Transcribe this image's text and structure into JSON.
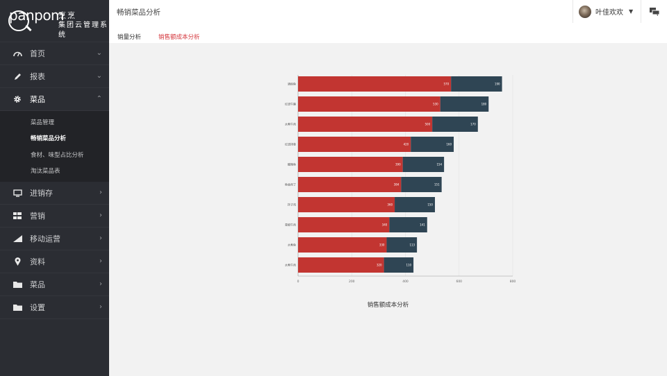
{
  "brand": {
    "name_en": "panpom",
    "name_cn": "烹烹",
    "subtitle": "集团云管理系统"
  },
  "sidebar": {
    "items": [
      {
        "label": "首页",
        "icon": "dashboard-icon",
        "arrow": "⌄"
      },
      {
        "label": "报表",
        "icon": "pencil-icon",
        "arrow": "⌄"
      },
      {
        "label": "菜品",
        "icon": "gear-icon",
        "arrow": "⌃"
      }
    ],
    "submenu": [
      {
        "label": "菜品管理"
      },
      {
        "label": "畅销菜品分析"
      },
      {
        "label": "食材、味型占比分析"
      },
      {
        "label": "淘汰菜品表"
      }
    ],
    "items_after": [
      {
        "label": "进销存",
        "icon": "monitor-icon",
        "arrow": "›"
      },
      {
        "label": "营销",
        "icon": "grid-icon",
        "arrow": "›"
      },
      {
        "label": "移动运营",
        "icon": "bar-chart-icon",
        "arrow": "›"
      },
      {
        "label": "资料",
        "icon": "location-pin-icon",
        "arrow": "›"
      },
      {
        "label": "菜品",
        "icon": "folder-icon",
        "arrow": "›"
      },
      {
        "label": "设置",
        "icon": "folder-icon",
        "arrow": "›"
      }
    ]
  },
  "header": {
    "title": "畅销菜品分析",
    "user_name": "叶佳欢欢",
    "caret": "▼"
  },
  "tabs": [
    {
      "label": "销量分析"
    },
    {
      "label": "销售额成本分析"
    }
  ],
  "colors": {
    "accent": "#d4373d",
    "bar_sales": "#c23531",
    "bar_cost": "#2f4554",
    "sidebar_bg": "#2b2d33"
  },
  "chart_data": {
    "type": "bar",
    "orientation": "horizontal",
    "stacked": true,
    "title": "销售额成本分析",
    "categories": [
      "酒焖鱼",
      "红烧牛腩",
      "水煮牛肉",
      "红烧排骨",
      "酸辣鱼",
      "鱼香肉丁",
      "拌子鸡",
      "青椒牛肉",
      "水煮鱼",
      "水煮牛肉"
    ],
    "series": [
      {
        "name": "销售额",
        "values": [
          570,
          530,
          500,
          420,
          390,
          384,
          360,
          340,
          330,
          320
        ]
      },
      {
        "name": "成本",
        "values": [
          190,
          180,
          170,
          160,
          154,
          151,
          150,
          141,
          113,
          110
        ]
      }
    ],
    "x_ticks": [
      "0",
      "200",
      "400",
      "600",
      "800"
    ],
    "xlim": [
      0,
      800
    ]
  }
}
